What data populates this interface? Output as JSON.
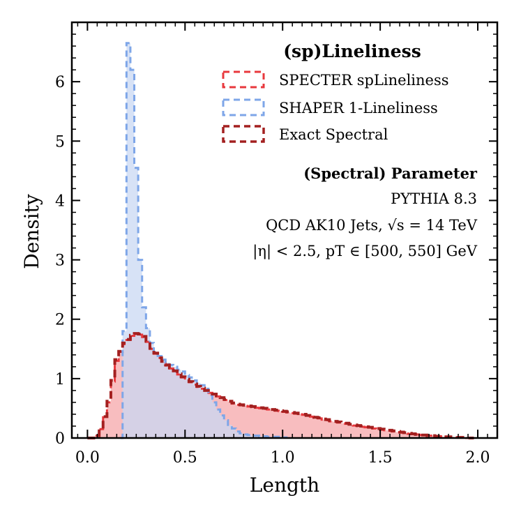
{
  "chart_data": {
    "type": "histogram",
    "xlabel": "Length",
    "ylabel": "Density",
    "xlim": [
      -0.08,
      2.1
    ],
    "ylim": [
      0,
      7.0
    ],
    "xticks": [
      0.0,
      0.5,
      1.0,
      1.5,
      2.0
    ],
    "xtick_labels": [
      "0.0",
      "0.5",
      "1.0",
      "1.5",
      "2.0"
    ],
    "yticks": [
      0,
      1,
      2,
      3,
      4,
      5,
      6
    ],
    "ytick_labels": [
      "0",
      "1",
      "2",
      "3",
      "4",
      "5",
      "6"
    ],
    "legend_title": "(sp)Lineliness",
    "legend_position": "top-right",
    "annotation": {
      "title": "(Spectral) Parameter",
      "lines": [
        "PYTHIA 8.3",
        "QCD AK10 Jets, √s = 14 TeV",
        "|η| < 2.5, pT ∈ [500, 550] GeV"
      ]
    },
    "series": [
      {
        "name": "SPECTER spLineliness",
        "color": "#e8383d",
        "fill": "#f59a9c",
        "bins": [
          [
            0.0,
            0.0
          ],
          [
            0.04,
            0.04
          ],
          [
            0.06,
            0.15
          ],
          [
            0.08,
            0.35
          ],
          [
            0.1,
            0.6
          ],
          [
            0.12,
            0.95
          ],
          [
            0.14,
            1.3
          ],
          [
            0.16,
            1.45
          ],
          [
            0.18,
            1.58
          ],
          [
            0.2,
            1.65
          ],
          [
            0.22,
            1.72
          ],
          [
            0.24,
            1.75
          ],
          [
            0.26,
            1.74
          ],
          [
            0.28,
            1.7
          ],
          [
            0.3,
            1.62
          ],
          [
            0.32,
            1.5
          ],
          [
            0.34,
            1.42
          ],
          [
            0.36,
            1.35
          ],
          [
            0.38,
            1.28
          ],
          [
            0.4,
            1.22
          ],
          [
            0.42,
            1.17
          ],
          [
            0.44,
            1.12
          ],
          [
            0.46,
            1.07
          ],
          [
            0.48,
            1.02
          ],
          [
            0.5,
            0.98
          ],
          [
            0.52,
            0.94
          ],
          [
            0.54,
            0.9
          ],
          [
            0.56,
            0.86
          ],
          [
            0.58,
            0.83
          ],
          [
            0.6,
            0.8
          ],
          [
            0.62,
            0.76
          ],
          [
            0.64,
            0.73
          ],
          [
            0.66,
            0.7
          ],
          [
            0.68,
            0.67
          ],
          [
            0.7,
            0.64
          ],
          [
            0.72,
            0.61
          ],
          [
            0.74,
            0.58
          ],
          [
            0.76,
            0.56
          ],
          [
            0.78,
            0.55
          ],
          [
            0.8,
            0.54
          ],
          [
            0.82,
            0.53
          ],
          [
            0.84,
            0.52
          ],
          [
            0.86,
            0.51
          ],
          [
            0.88,
            0.5
          ],
          [
            0.9,
            0.49
          ],
          [
            0.92,
            0.48
          ],
          [
            0.94,
            0.47
          ],
          [
            0.96,
            0.46
          ],
          [
            0.98,
            0.45
          ],
          [
            1.0,
            0.44
          ],
          [
            1.02,
            0.43
          ],
          [
            1.04,
            0.42
          ],
          [
            1.06,
            0.41
          ],
          [
            1.08,
            0.4
          ],
          [
            1.1,
            0.39
          ],
          [
            1.12,
            0.37
          ],
          [
            1.14,
            0.36
          ],
          [
            1.16,
            0.34
          ],
          [
            1.18,
            0.33
          ],
          [
            1.2,
            0.31
          ],
          [
            1.22,
            0.3
          ],
          [
            1.24,
            0.28
          ],
          [
            1.26,
            0.27
          ],
          [
            1.28,
            0.26
          ],
          [
            1.3,
            0.25
          ],
          [
            1.32,
            0.24
          ],
          [
            1.34,
            0.22
          ],
          [
            1.36,
            0.21
          ],
          [
            1.38,
            0.2
          ],
          [
            1.4,
            0.19
          ],
          [
            1.42,
            0.18
          ],
          [
            1.44,
            0.17
          ],
          [
            1.46,
            0.16
          ],
          [
            1.48,
            0.15
          ],
          [
            1.5,
            0.14
          ],
          [
            1.52,
            0.13
          ],
          [
            1.54,
            0.12
          ],
          [
            1.56,
            0.11
          ],
          [
            1.58,
            0.1
          ],
          [
            1.6,
            0.09
          ],
          [
            1.62,
            0.08
          ],
          [
            1.64,
            0.07
          ],
          [
            1.66,
            0.07
          ],
          [
            1.68,
            0.06
          ],
          [
            1.7,
            0.05
          ],
          [
            1.72,
            0.05
          ],
          [
            1.74,
            0.04
          ],
          [
            1.76,
            0.04
          ],
          [
            1.78,
            0.03
          ],
          [
            1.8,
            0.03
          ],
          [
            1.82,
            0.02
          ],
          [
            1.84,
            0.02
          ],
          [
            1.86,
            0.02
          ],
          [
            1.88,
            0.01
          ],
          [
            1.9,
            0.01
          ],
          [
            1.92,
            0.01
          ],
          [
            1.94,
            0.0
          ],
          [
            1.96,
            0.0
          ]
        ]
      },
      {
        "name": "SHAPER 1-Lineliness",
        "color": "#7ea6e8",
        "fill": "#c9d8f3",
        "bins": [
          [
            0.17,
            0.0
          ],
          [
            0.18,
            1.8
          ],
          [
            0.2,
            6.65
          ],
          [
            0.22,
            6.2
          ],
          [
            0.24,
            4.55
          ],
          [
            0.26,
            3.0
          ],
          [
            0.28,
            2.2
          ],
          [
            0.3,
            1.85
          ],
          [
            0.32,
            1.6
          ],
          [
            0.34,
            1.45
          ],
          [
            0.36,
            1.38
          ],
          [
            0.38,
            1.32
          ],
          [
            0.4,
            1.27
          ],
          [
            0.42,
            1.23
          ],
          [
            0.44,
            1.2
          ],
          [
            0.46,
            1.15
          ],
          [
            0.48,
            1.12
          ],
          [
            0.5,
            1.06
          ],
          [
            0.52,
            1.02
          ],
          [
            0.54,
            0.97
          ],
          [
            0.56,
            0.93
          ],
          [
            0.58,
            0.89
          ],
          [
            0.6,
            0.83
          ],
          [
            0.62,
            0.72
          ],
          [
            0.64,
            0.6
          ],
          [
            0.66,
            0.48
          ],
          [
            0.68,
            0.38
          ],
          [
            0.7,
            0.3
          ],
          [
            0.72,
            0.22
          ],
          [
            0.74,
            0.16
          ],
          [
            0.76,
            0.11
          ],
          [
            0.78,
            0.08
          ],
          [
            0.8,
            0.06
          ],
          [
            0.82,
            0.05
          ],
          [
            0.84,
            0.04
          ],
          [
            0.86,
            0.04
          ],
          [
            0.88,
            0.03
          ],
          [
            0.9,
            0.03
          ],
          [
            0.92,
            0.02
          ],
          [
            0.94,
            0.02
          ],
          [
            0.96,
            0.02
          ],
          [
            0.98,
            0.02
          ],
          [
            1.0,
            0.01
          ]
        ]
      },
      {
        "name": "Exact Spectral",
        "color": "#a32020",
        "fill": "none",
        "bins": [
          [
            0.0,
            0.0
          ],
          [
            0.04,
            0.04
          ],
          [
            0.06,
            0.15
          ],
          [
            0.08,
            0.36
          ],
          [
            0.1,
            0.62
          ],
          [
            0.12,
            0.97
          ],
          [
            0.14,
            1.32
          ],
          [
            0.16,
            1.46
          ],
          [
            0.18,
            1.6
          ],
          [
            0.2,
            1.66
          ],
          [
            0.22,
            1.73
          ],
          [
            0.24,
            1.76
          ],
          [
            0.26,
            1.75
          ],
          [
            0.28,
            1.71
          ],
          [
            0.3,
            1.63
          ],
          [
            0.32,
            1.51
          ],
          [
            0.34,
            1.43
          ],
          [
            0.36,
            1.35
          ],
          [
            0.38,
            1.29
          ],
          [
            0.4,
            1.23
          ],
          [
            0.42,
            1.18
          ],
          [
            0.44,
            1.13
          ],
          [
            0.46,
            1.08
          ],
          [
            0.48,
            1.03
          ],
          [
            0.5,
            0.99
          ],
          [
            0.52,
            0.95
          ],
          [
            0.54,
            0.91
          ],
          [
            0.56,
            0.87
          ],
          [
            0.58,
            0.84
          ],
          [
            0.6,
            0.8
          ],
          [
            0.62,
            0.77
          ],
          [
            0.64,
            0.74
          ],
          [
            0.66,
            0.71
          ],
          [
            0.68,
            0.68
          ],
          [
            0.7,
            0.65
          ],
          [
            0.72,
            0.62
          ],
          [
            0.74,
            0.59
          ],
          [
            0.76,
            0.57
          ],
          [
            0.78,
            0.56
          ],
          [
            0.8,
            0.55
          ],
          [
            0.82,
            0.54
          ],
          [
            0.84,
            0.53
          ],
          [
            0.86,
            0.52
          ],
          [
            0.88,
            0.51
          ],
          [
            0.9,
            0.5
          ],
          [
            0.92,
            0.49
          ],
          [
            0.94,
            0.48
          ],
          [
            0.96,
            0.47
          ],
          [
            0.98,
            0.46
          ],
          [
            1.0,
            0.45
          ],
          [
            1.02,
            0.44
          ],
          [
            1.04,
            0.43
          ],
          [
            1.06,
            0.42
          ],
          [
            1.08,
            0.41
          ],
          [
            1.1,
            0.4
          ],
          [
            1.12,
            0.38
          ],
          [
            1.14,
            0.37
          ],
          [
            1.16,
            0.35
          ],
          [
            1.18,
            0.34
          ],
          [
            1.2,
            0.32
          ],
          [
            1.22,
            0.31
          ],
          [
            1.24,
            0.29
          ],
          [
            1.26,
            0.28
          ],
          [
            1.28,
            0.27
          ],
          [
            1.3,
            0.26
          ],
          [
            1.32,
            0.25
          ],
          [
            1.34,
            0.23
          ],
          [
            1.36,
            0.22
          ],
          [
            1.38,
            0.21
          ],
          [
            1.4,
            0.2
          ],
          [
            1.42,
            0.19
          ],
          [
            1.44,
            0.18
          ],
          [
            1.46,
            0.17
          ],
          [
            1.48,
            0.16
          ],
          [
            1.5,
            0.15
          ],
          [
            1.52,
            0.14
          ],
          [
            1.54,
            0.13
          ],
          [
            1.56,
            0.12
          ],
          [
            1.58,
            0.11
          ],
          [
            1.6,
            0.1
          ],
          [
            1.62,
            0.09
          ],
          [
            1.64,
            0.08
          ],
          [
            1.66,
            0.07
          ],
          [
            1.68,
            0.06
          ],
          [
            1.7,
            0.05
          ],
          [
            1.72,
            0.05
          ],
          [
            1.74,
            0.04
          ],
          [
            1.76,
            0.04
          ],
          [
            1.78,
            0.03
          ],
          [
            1.8,
            0.03
          ],
          [
            1.82,
            0.02
          ],
          [
            1.84,
            0.02
          ],
          [
            1.86,
            0.02
          ],
          [
            1.88,
            0.01
          ],
          [
            1.9,
            0.01
          ],
          [
            1.92,
            0.01
          ],
          [
            1.94,
            0.0
          ],
          [
            1.96,
            0.0
          ]
        ]
      }
    ]
  }
}
